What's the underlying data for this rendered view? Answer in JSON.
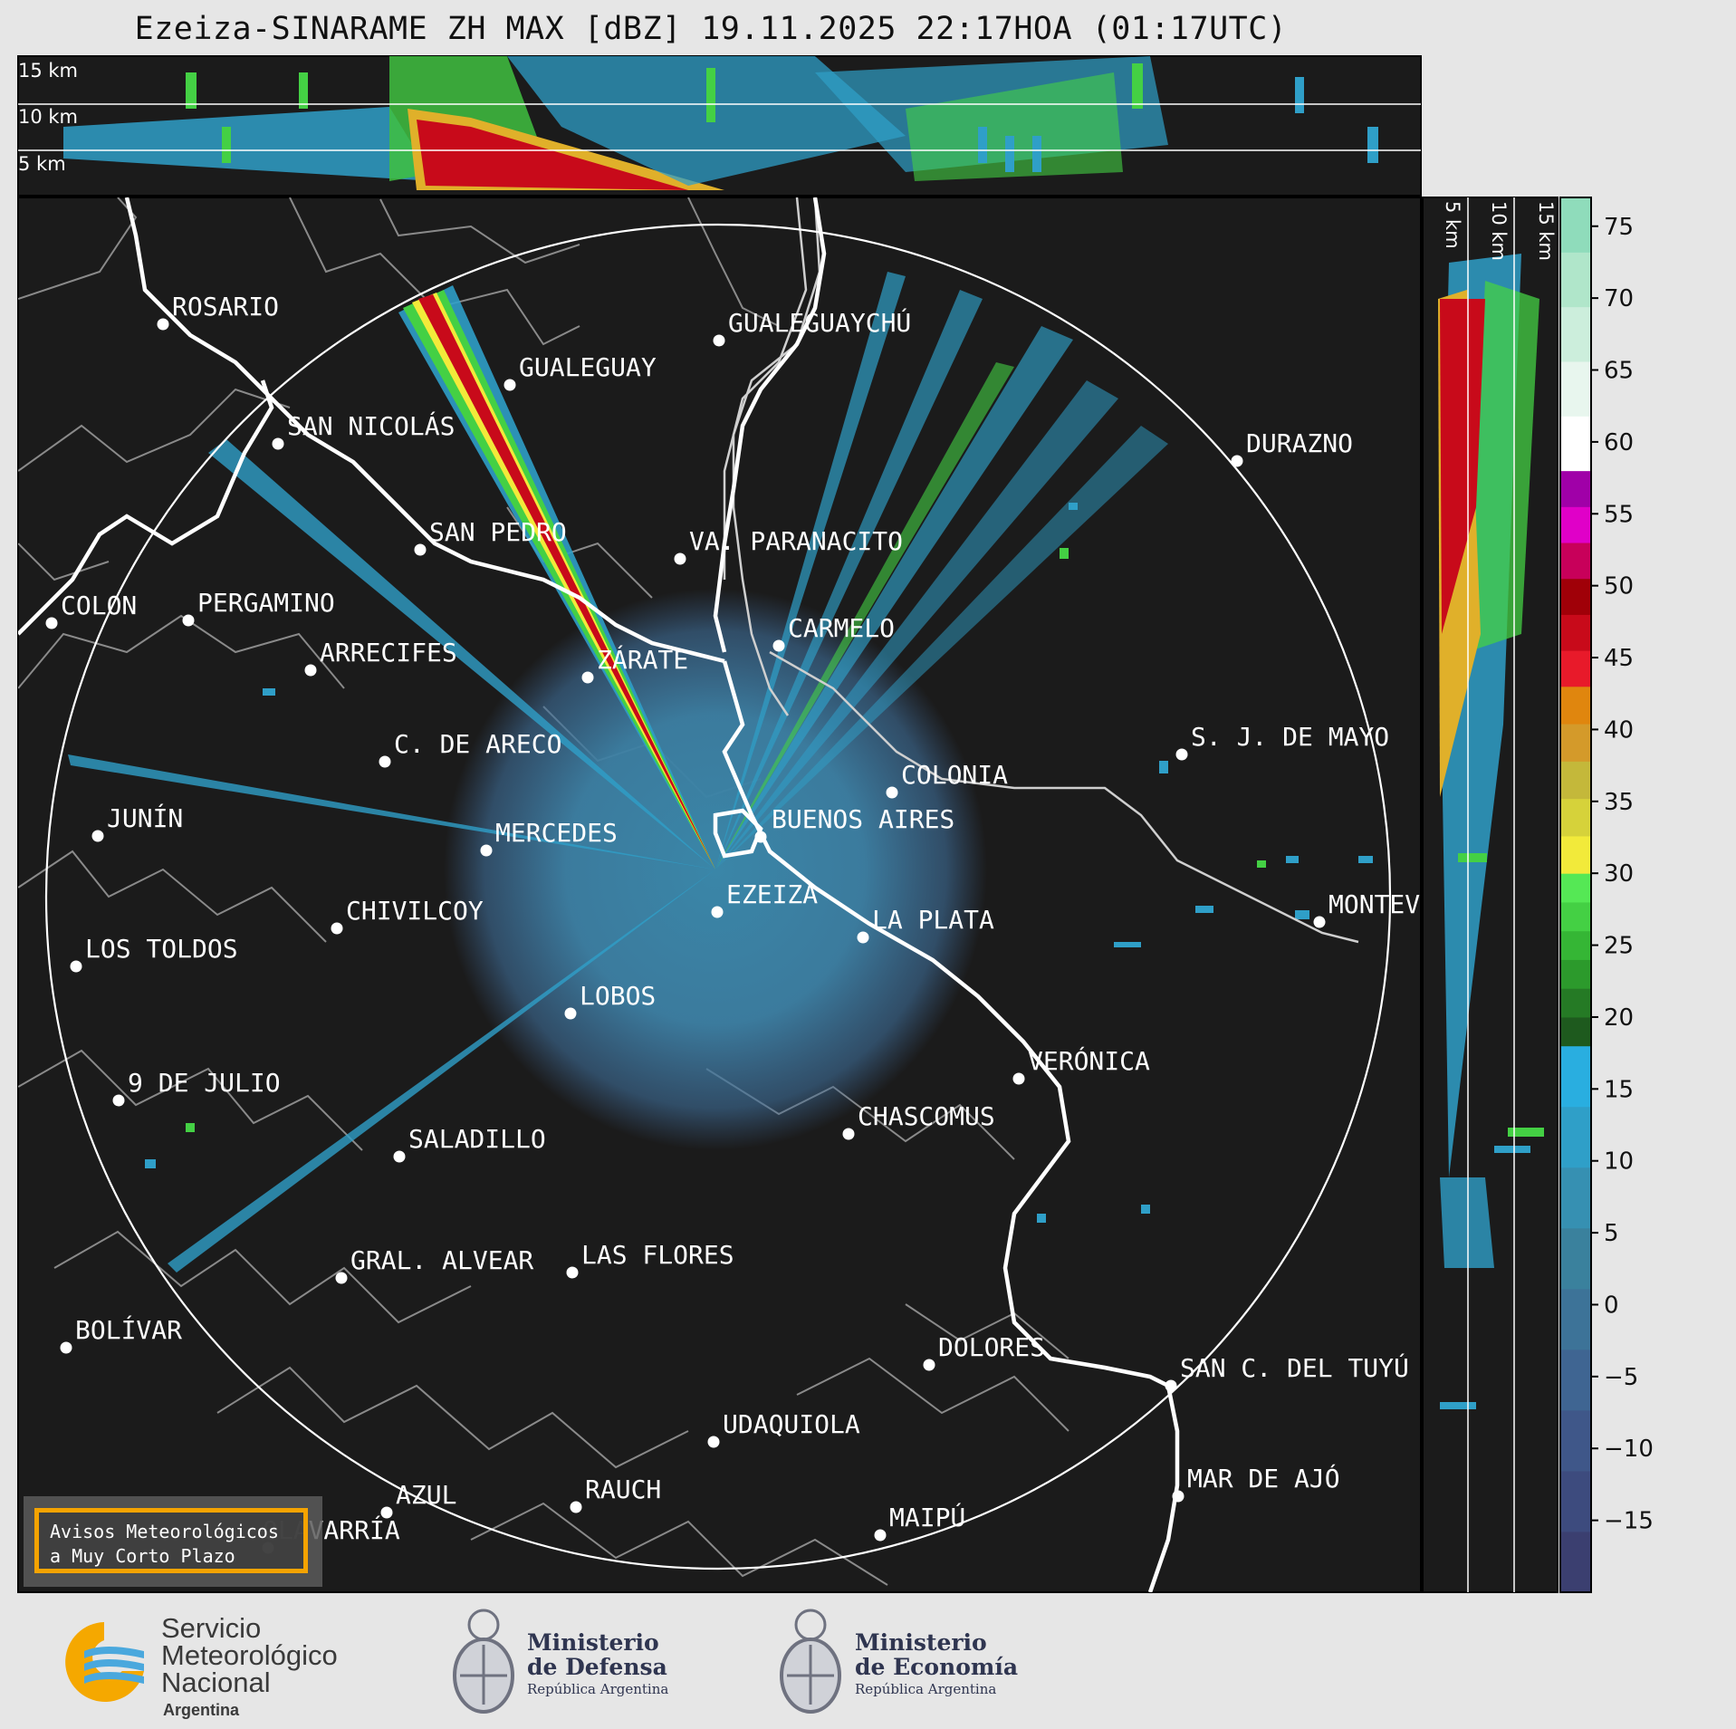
{
  "title": "Ezeiza-SINARAME ZH MAX [dBZ] 19.11.2025 22:17HOA (01:17UTC)",
  "top_panel": {
    "height_labels": [
      "15 km",
      "10 km",
      "5 km"
    ]
  },
  "side_panel": {
    "height_labels": [
      "5 km",
      "10 km",
      "15 km"
    ]
  },
  "colorbar": {
    "unit": "dBZ",
    "ticks": [
      "75",
      "70",
      "65",
      "60",
      "55",
      "50",
      "45",
      "40",
      "35",
      "30",
      "25",
      "20",
      "15",
      "10",
      "5",
      "0",
      "−5",
      "−10",
      "−15"
    ],
    "min": -20,
    "max": 77,
    "colors": {
      "blues": [
        "#3b3f70",
        "#3d4b7e",
        "#3f5789",
        "#3f6592",
        "#3d7398",
        "#3a819d",
        "#3690b2",
        "#2f9fc8",
        "#29aee0"
      ],
      "greens": [
        "#1e5a1e",
        "#257a25",
        "#2c9a2c",
        "#35b635",
        "#44d044",
        "#55e855"
      ],
      "yellows": [
        "#f2ea3a",
        "#d6d23a",
        "#c4b83a",
        "#d49a2a",
        "#e0860e"
      ],
      "reds": [
        "#e81a2a",
        "#c80a1a",
        "#a00008",
        "#c8005a",
        "#e000c8",
        "#a000a8"
      ],
      "whites": [
        "#ffffff",
        "#e8f6ee",
        "#cceedc",
        "#b0e6ca",
        "#8fdcbb"
      ]
    }
  },
  "map": {
    "radar_site": "EZEIZA",
    "range_ring_km": 240,
    "background_color": "#1b1b1b",
    "cities": [
      {
        "name": "ROSARIO"
      },
      {
        "name": "GUALEGUAYCHÚ"
      },
      {
        "name": "GUALEGUAY"
      },
      {
        "name": "SAN NICOLÁS"
      },
      {
        "name": "DURAZNO"
      },
      {
        "name": "SAN PEDRO"
      },
      {
        "name": "VA. PARANACITO"
      },
      {
        "name": "COLON"
      },
      {
        "name": "PERGAMINO"
      },
      {
        "name": "CARMELO"
      },
      {
        "name": "ARRECIFES"
      },
      {
        "name": "ZÁRATE"
      },
      {
        "name": "S. J. DE MAYO"
      },
      {
        "name": "C. DE ARECO"
      },
      {
        "name": "COLONIA"
      },
      {
        "name": "JUNÍN"
      },
      {
        "name": "BUENOS AIRES"
      },
      {
        "name": "MERCEDES"
      },
      {
        "name": "EZEIZA"
      },
      {
        "name": "MONTEVIDEO"
      },
      {
        "name": "CHIVILCOY"
      },
      {
        "name": "LA PLATA"
      },
      {
        "name": "LOS TOLDOS"
      },
      {
        "name": "LOBOS"
      },
      {
        "name": "VERÓNICA"
      },
      {
        "name": "9 DE JULIO"
      },
      {
        "name": "CHASCOMUS"
      },
      {
        "name": "SALADILLO"
      },
      {
        "name": "GRAL. ALVEAR"
      },
      {
        "name": "LAS FLORES"
      },
      {
        "name": "BOLÍVAR"
      },
      {
        "name": "DOLORES"
      },
      {
        "name": "SAN C. DEL TUYÚ"
      },
      {
        "name": "UDAQUIOLA"
      },
      {
        "name": "MAR DE AJÓ"
      },
      {
        "name": "AZUL"
      },
      {
        "name": "RAUCH"
      },
      {
        "name": "OLAVARRÍA"
      },
      {
        "name": "MAIPÚ"
      }
    ]
  },
  "warning_badge": {
    "line1": "Avisos Meteorológicos",
    "line2": "a Muy Corto Plazo"
  },
  "footer": {
    "smn": {
      "line1": "Servicio",
      "line2": "Meteorológico",
      "line3": "Nacional",
      "line4": "Argentina"
    },
    "defensa": {
      "line1": "Ministerio",
      "line2": "de Defensa",
      "line3": "República Argentina"
    },
    "economia": {
      "line1": "Ministerio",
      "line2": "de Economía",
      "line3": "República Argentina"
    }
  }
}
